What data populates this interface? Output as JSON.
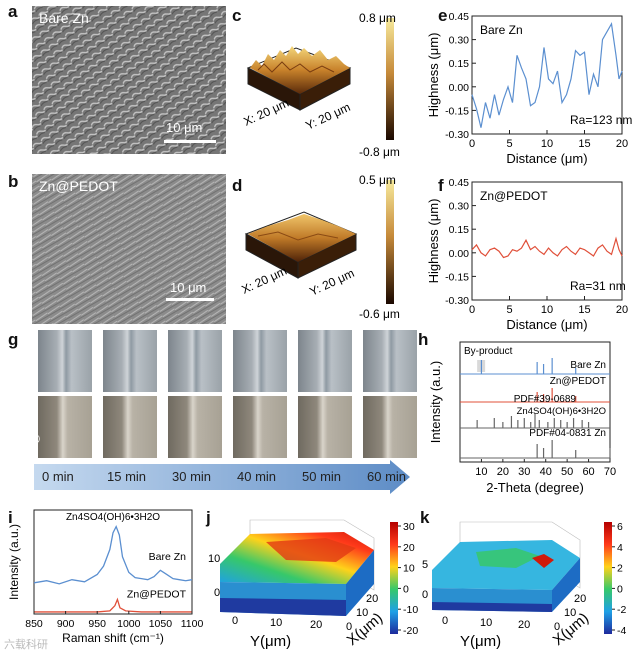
{
  "panels": {
    "a": {
      "letter": "a",
      "label": "Bare Zn",
      "scale": "10 μm"
    },
    "b": {
      "letter": "b",
      "label": "Zn@PEDOT",
      "scale": "10 μm"
    },
    "c": {
      "letter": "c",
      "x_axis": "X: 20 μm",
      "y_axis": "Y: 20 μm",
      "cbar_max": "0.8 μm",
      "cbar_min": "-0.8 μm"
    },
    "d": {
      "letter": "d",
      "x_axis": "X: 20 μm",
      "y_axis": "Y: 20 μm",
      "cbar_max": "0.5 μm",
      "cbar_min": "-0.6 μm"
    },
    "g": {
      "letter": "g",
      "row_top": "Bare Zn",
      "row_bottom": "Zn@PEDOT",
      "times": [
        "0 min",
        "15 min",
        "30 min",
        "40 min",
        "50 min",
        "60 min"
      ]
    },
    "h": {
      "letter": "h"
    },
    "i": {
      "letter": "i"
    },
    "j": {
      "letter": "j"
    },
    "k": {
      "letter": "k"
    }
  },
  "colors": {
    "blue": "#5b8fd0",
    "red": "#e0503a",
    "arrow": "#7aa6d6"
  },
  "watermark": "六载科研",
  "chart_data": [
    {
      "id": "e",
      "type": "line",
      "letter": "e",
      "title": "Bare Zn",
      "annotation": "Ra=123 nm",
      "xlabel": "Distance (μm)",
      "ylabel": "Highness (μm)",
      "xlim": [
        0,
        20
      ],
      "ylim": [
        -0.3,
        0.45
      ],
      "xticks": [
        "0",
        "5",
        "10",
        "15",
        "20"
      ],
      "yticks": [
        "-0.30",
        "-0.15",
        "0.00",
        "0.15",
        "0.30",
        "0.45"
      ],
      "series": [
        {
          "name": "Bare Zn",
          "color": "#5b8fd0",
          "x": [
            0,
            0.6,
            1.2,
            1.8,
            2.4,
            3,
            3.6,
            4.2,
            4.8,
            5.4,
            6,
            6.6,
            7.2,
            7.8,
            8.4,
            9,
            9.6,
            10.2,
            10.8,
            11.4,
            12,
            12.6,
            13.2,
            13.8,
            14.4,
            15,
            15.6,
            16.2,
            16.8,
            17.4,
            18,
            18.6,
            19.2,
            19.6,
            20
          ],
          "y": [
            -0.05,
            -0.14,
            -0.26,
            -0.1,
            -0.2,
            -0.05,
            -0.18,
            -0.08,
            0.0,
            -0.1,
            0.2,
            0.12,
            0.05,
            -0.12,
            -0.1,
            0.0,
            0.25,
            0.05,
            0.02,
            0.1,
            -0.1,
            -0.05,
            0.05,
            0.23,
            0.2,
            0.22,
            -0.05,
            0.08,
            0.0,
            0.3,
            0.35,
            0.4,
            0.2,
            0.05,
            0.1
          ]
        }
      ]
    },
    {
      "id": "f",
      "type": "line",
      "letter": "f",
      "title": "Zn@PEDOT",
      "annotation": "Ra=31 nm",
      "xlabel": "Distance (μm)",
      "ylabel": "Highness (μm)",
      "xlim": [
        0,
        20
      ],
      "ylim": [
        -0.3,
        0.45
      ],
      "xticks": [
        "0",
        "5",
        "10",
        "15",
        "20"
      ],
      "yticks": [
        "-0.30",
        "-0.15",
        "0.00",
        "0.15",
        "0.30",
        "0.45"
      ],
      "series": [
        {
          "name": "Zn@PEDOT",
          "color": "#e0503a",
          "x": [
            0,
            0.6,
            1.2,
            1.8,
            2.4,
            3,
            3.6,
            4.2,
            4.8,
            5.4,
            6,
            6.6,
            7.2,
            7.8,
            8.4,
            9,
            9.6,
            10.2,
            10.8,
            11.4,
            12,
            12.6,
            13.2,
            13.8,
            14.4,
            15,
            15.6,
            16.2,
            16.8,
            17.4,
            18,
            18.6,
            19.2,
            19.6,
            20
          ],
          "y": [
            0.02,
            0.05,
            0.0,
            -0.02,
            0.02,
            0.03,
            0.01,
            -0.03,
            -0.02,
            0.02,
            0.01,
            0.03,
            0.08,
            0.02,
            0.04,
            0.01,
            -0.01,
            0.03,
            0.0,
            -0.02,
            0.02,
            0.04,
            0.01,
            -0.01,
            0.03,
            0.02,
            0.0,
            -0.02,
            0.03,
            0.05,
            0.01,
            -0.01,
            0.09,
            0.02,
            -0.02
          ]
        }
      ]
    },
    {
      "id": "h",
      "type": "bar",
      "letter": "h",
      "xlabel": "2-Theta (degree)",
      "ylabel": "Intensity (a.u.)",
      "xlim": [
        0,
        70
      ],
      "xticks": [
        "10",
        "20",
        "30",
        "40",
        "50",
        "60",
        "70"
      ],
      "annotation": "By-product",
      "series": [
        {
          "name": "Bare Zn",
          "color": "#5b8fd0",
          "peaks": [
            10,
            36,
            39,
            43,
            54
          ]
        },
        {
          "name": "Zn@PEDOT",
          "color": "#e0503a",
          "peaks": [
            36,
            39,
            43,
            54
          ]
        },
        {
          "name": "PDF#39-0689",
          "sub": "Zn4SO4(OH)6•3H2O",
          "color": "#666666",
          "peaks": [
            8,
            16,
            20,
            24,
            27,
            30,
            33,
            35,
            37,
            41,
            44,
            47,
            50,
            53,
            57,
            60
          ]
        },
        {
          "name": "PDF#04-0831 Zn",
          "color": "#666666",
          "peaks": [
            36,
            39,
            43,
            54,
            70
          ]
        }
      ]
    },
    {
      "id": "i",
      "type": "line",
      "letter": "i",
      "xlabel": "Raman shift (cm⁻¹)",
      "ylabel": "Intensity (a.u.)",
      "xlim": [
        850,
        1100
      ],
      "xticks": [
        "850",
        "900",
        "950",
        "1000",
        "1050",
        "1100"
      ],
      "annotation": "Zn4SO4(OH)6•3H2O",
      "series": [
        {
          "name": "Bare Zn",
          "color": "#5b8fd0",
          "x": [
            850,
            870,
            890,
            910,
            930,
            950,
            960,
            970,
            975,
            980,
            985,
            990,
            1000,
            1010,
            1020,
            1030,
            1040,
            1050,
            1060,
            1070,
            1080,
            1090,
            1100
          ],
          "y": [
            0.3,
            0.32,
            0.29,
            0.33,
            0.31,
            0.38,
            0.46,
            0.62,
            0.78,
            0.84,
            0.76,
            0.55,
            0.4,
            0.35,
            0.34,
            0.33,
            0.36,
            0.42,
            0.38,
            0.34,
            0.33,
            0.32,
            0.33
          ]
        },
        {
          "name": "Zn@PEDOT",
          "color": "#e0503a",
          "x": [
            850,
            900,
            950,
            970,
            978,
            982,
            986,
            995,
            1020,
            1060,
            1100
          ],
          "y": [
            0.02,
            0.02,
            0.02,
            0.03,
            0.08,
            0.14,
            0.06,
            0.03,
            0.02,
            0.02,
            0.02
          ]
        }
      ]
    },
    {
      "id": "j",
      "type": "heatmap",
      "letter": "j",
      "xlabel": "Y(μm)",
      "ylabel": "X(μm)",
      "x_ticks": [
        "0",
        "10",
        "20"
      ],
      "y_ticks": [
        "0",
        "10",
        "20"
      ],
      "z_ticks": [
        "10",
        "0"
      ],
      "colorbar_ticks": [
        "30",
        "20",
        "10",
        "0",
        "-10",
        "-20"
      ]
    },
    {
      "id": "k",
      "type": "heatmap",
      "letter": "k",
      "xlabel": "Y(μm)",
      "ylabel": "X(μm)",
      "x_ticks": [
        "0",
        "10",
        "20"
      ],
      "y_ticks": [
        "0",
        "10",
        "20"
      ],
      "z_ticks": [
        "5",
        "0"
      ],
      "colorbar_ticks": [
        "6",
        "4",
        "2",
        "0",
        "-2",
        "-4"
      ]
    }
  ]
}
